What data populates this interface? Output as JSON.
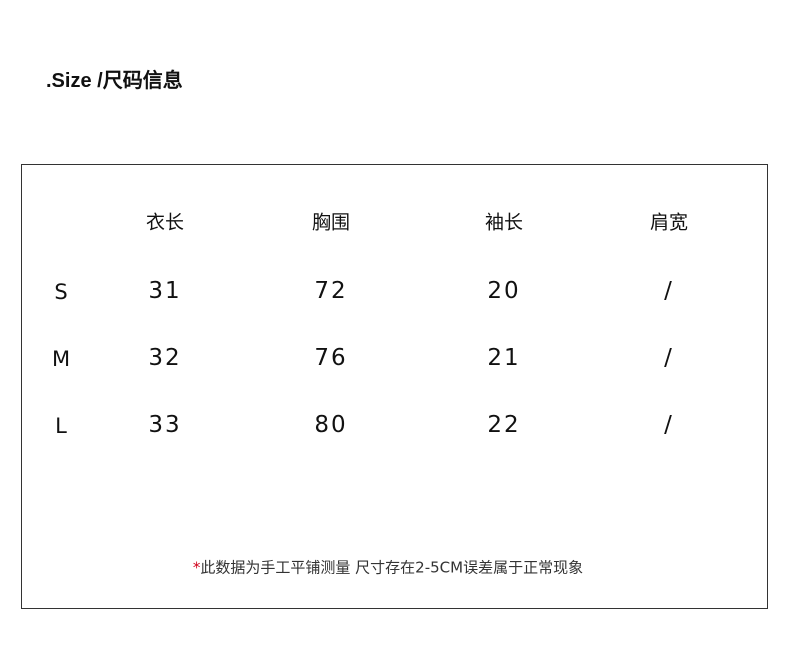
{
  "title": ".Size /尺码信息",
  "table": {
    "headers": [
      "衣长",
      "胸围",
      "袖长",
      "肩宽"
    ],
    "rows": [
      {
        "size": "S",
        "values": [
          "31",
          "72",
          "20",
          "/"
        ]
      },
      {
        "size": "M",
        "values": [
          "32",
          "76",
          "21",
          "/"
        ]
      },
      {
        "size": "L",
        "values": [
          "33",
          "80",
          "22",
          "/"
        ]
      }
    ]
  },
  "note": {
    "marker": "*",
    "text": "此数据为手工平铺测量 尺寸存在2-5CM误差属于正常现象",
    "marker_color": "#d0021b"
  }
}
